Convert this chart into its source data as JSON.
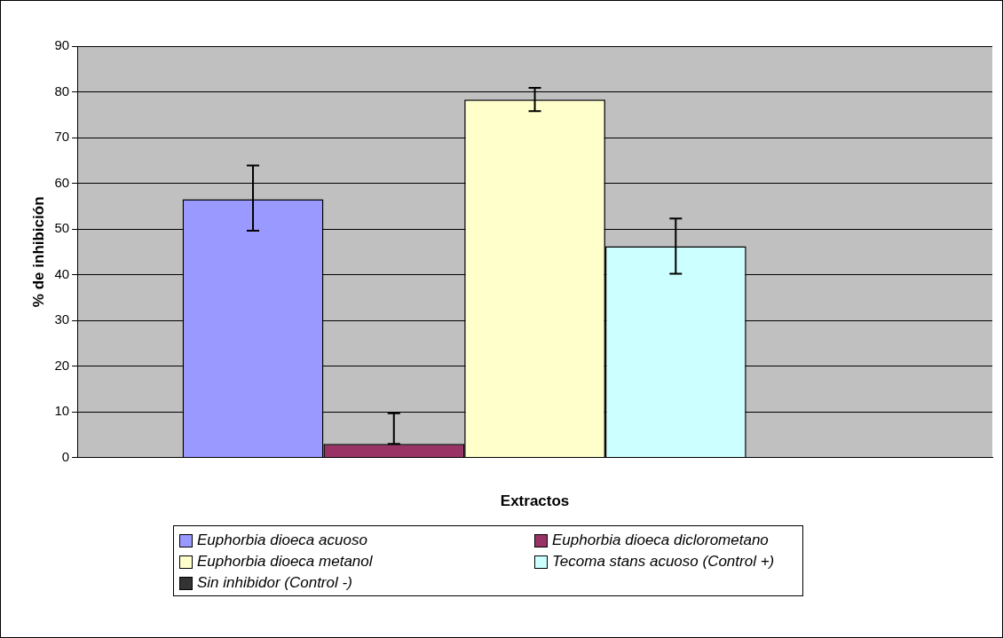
{
  "chart_data": {
    "type": "bar",
    "xlabel": "Extractos",
    "ylabel": "% de inhibición",
    "categories": [
      null
    ],
    "series": [
      {
        "name": "Euphorbia dioeca acuoso",
        "color": "#9999ff",
        "values": [
          56.5
        ],
        "errors": [
          [
            49.6,
            63.9
          ]
        ]
      },
      {
        "name": "Euphorbia dioeca diclorometano",
        "color": "#993366",
        "values": [
          3.0
        ],
        "errors": [
          [
            3.0,
            9.7
          ]
        ]
      },
      {
        "name": "Euphorbia dioeca metanol",
        "color": "#ffffcc",
        "values": [
          78.3
        ],
        "errors": [
          [
            75.8,
            80.9
          ]
        ]
      },
      {
        "name": "Tecoma stans acuoso (Control +)",
        "color": "#ccffff",
        "values": [
          46.2
        ],
        "errors": [
          [
            40.2,
            52.3
          ]
        ]
      },
      {
        "name": "Sin inhibidor (Control -)",
        "color": "#333333",
        "values": [
          0
        ]
      }
    ],
    "ylim": [
      0,
      90
    ],
    "yticks": [
      0,
      10,
      20,
      30,
      40,
      50,
      60,
      70,
      80,
      90
    ],
    "grid": "y",
    "legend": "bottom"
  }
}
